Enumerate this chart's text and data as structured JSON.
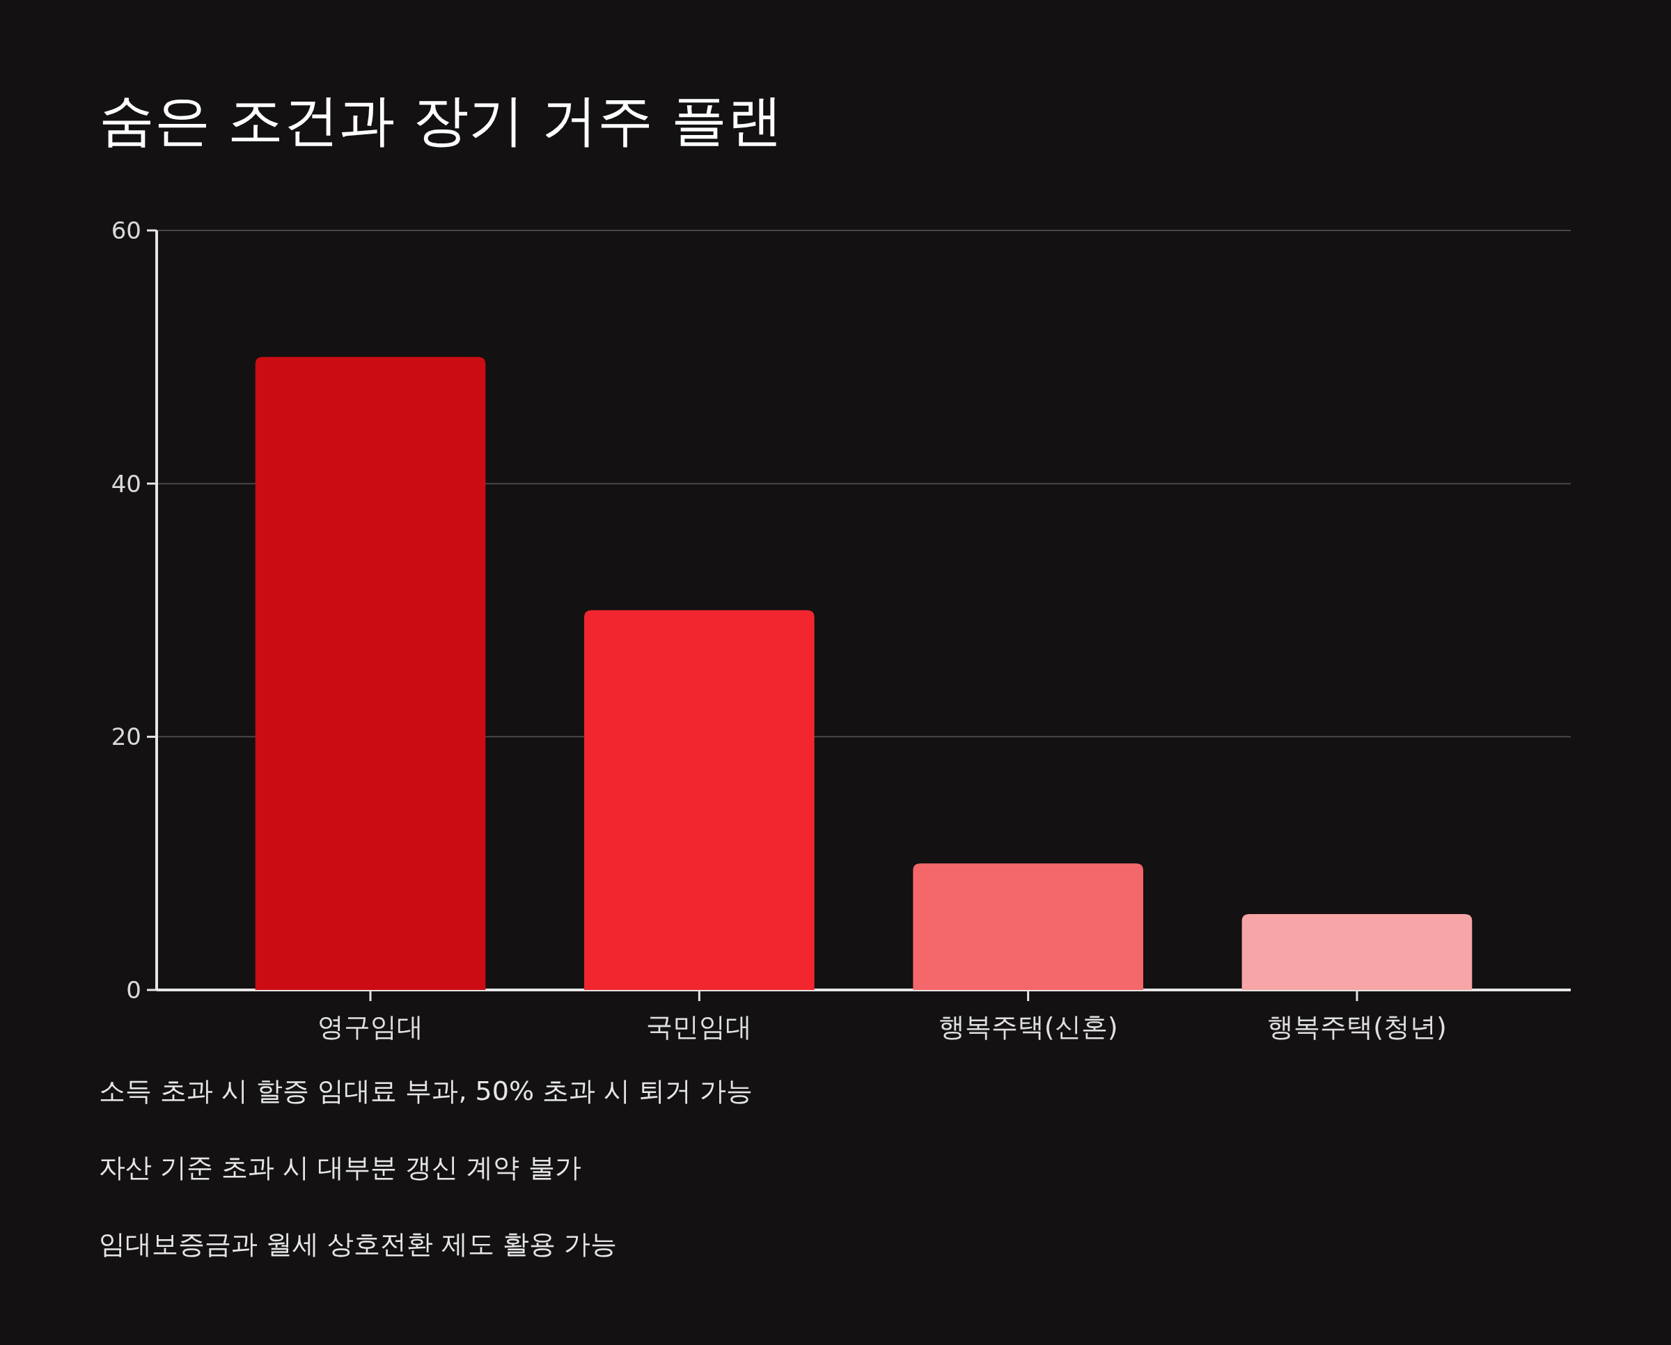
{
  "chart_data": {
    "type": "bar",
    "title": "숨은 조건과 장기 거주 플랜",
    "categories": [
      "영구임대",
      "국민임대",
      "행복주택(신혼)",
      "행복주택(청년)"
    ],
    "values": [
      50,
      30,
      10,
      6
    ],
    "colors": [
      "#cc0c13",
      "#f2262e",
      "#f4676b",
      "#f8a5a8"
    ],
    "ylim": [
      0,
      60
    ],
    "yticks": [
      0,
      20,
      40,
      60
    ],
    "grid": "y",
    "annotations": [
      "소득 초과 시 할증 임대료 부과, 50% 초과 시 퇴거 가능",
      "자산 기준 초과 시 대부분 갱신 계약 불가",
      "임대보증금과 월세 상호전환 제도 활용 가능"
    ]
  }
}
